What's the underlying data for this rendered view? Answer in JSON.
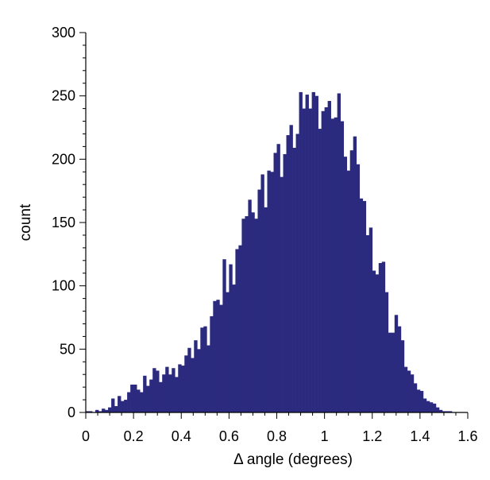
{
  "chart_data": {
    "type": "bar",
    "title": "",
    "xlabel": "Δ angle (degrees)",
    "ylabel": "count",
    "xlim": [
      0,
      1.6
    ],
    "ylim": [
      0,
      300
    ],
    "x_ticks": [
      "0",
      "0.2",
      "0.4",
      "0.6",
      "0.8",
      "1",
      "1.2",
      "1.4",
      "1.6"
    ],
    "y_ticks": [
      "0",
      "50",
      "100",
      "150",
      "200",
      "250",
      "300"
    ],
    "grid": false,
    "legend": "none",
    "bin_width": 0.0133,
    "bar_color": "#2b2a7f",
    "bin_starts": [
      0.0,
      0.0133,
      0.0267,
      0.04,
      0.0533,
      0.0667,
      0.08,
      0.0933,
      0.1067,
      0.12,
      0.1333,
      0.1467,
      0.16,
      0.1733,
      0.1867,
      0.2,
      0.2133,
      0.2267,
      0.24,
      0.2533,
      0.2667,
      0.28,
      0.2933,
      0.3067,
      0.32,
      0.3333,
      0.3467,
      0.36,
      0.3733,
      0.3867,
      0.4,
      0.4133,
      0.4267,
      0.44,
      0.4533,
      0.4667,
      0.48,
      0.4933,
      0.5067,
      0.52,
      0.5333,
      0.5467,
      0.56,
      0.5733,
      0.5867,
      0.6,
      0.6133,
      0.6267,
      0.64,
      0.6533,
      0.6667,
      0.68,
      0.6933,
      0.7067,
      0.72,
      0.7333,
      0.7467,
      0.76,
      0.7733,
      0.7867,
      0.8,
      0.8133,
      0.8267,
      0.84,
      0.8533,
      0.8667,
      0.88,
      0.8933,
      0.9067,
      0.92,
      0.9333,
      0.9467,
      0.96,
      0.9733,
      0.9867,
      1.0,
      1.0133,
      1.0267,
      1.04,
      1.0533,
      1.0667,
      1.08,
      1.0933,
      1.1067,
      1.12,
      1.1333,
      1.1467,
      1.16,
      1.1733,
      1.1867,
      1.2,
      1.2133,
      1.2267,
      1.24,
      1.2533,
      1.2667,
      1.28,
      1.2933,
      1.3067,
      1.32,
      1.3333,
      1.3467,
      1.36,
      1.3733,
      1.3867,
      1.4,
      1.4133,
      1.4267,
      1.44,
      1.4533,
      1.4667,
      1.48,
      1.4933,
      1.5067,
      1.52
    ],
    "values": [
      1,
      1,
      0,
      2,
      1,
      3,
      2,
      4,
      11,
      5,
      13,
      9,
      10,
      16,
      22,
      22,
      18,
      16,
      29,
      21,
      26,
      35,
      33,
      24,
      30,
      36,
      30,
      35,
      28,
      38,
      37,
      45,
      51,
      43,
      57,
      50,
      67,
      68,
      53,
      76,
      88,
      89,
      85,
      121,
      95,
      117,
      101,
      129,
      132,
      153,
      155,
      168,
      158,
      153,
      176,
      188,
      162,
      191,
      190,
      205,
      212,
      186,
      204,
      219,
      227,
      209,
      220,
      253,
      240,
      251,
      240,
      253,
      250,
      224,
      238,
      241,
      246,
      232,
      233,
      252,
      230,
      202,
      191,
      207,
      218,
      196,
      169,
      167,
      140,
      146,
      112,
      109,
      118,
      119,
      95,
      63,
      63,
      77,
      68,
      57,
      36,
      33,
      30,
      23,
      18,
      17,
      11,
      9,
      8,
      7,
      4,
      2,
      1,
      1,
      1,
      1
    ]
  }
}
